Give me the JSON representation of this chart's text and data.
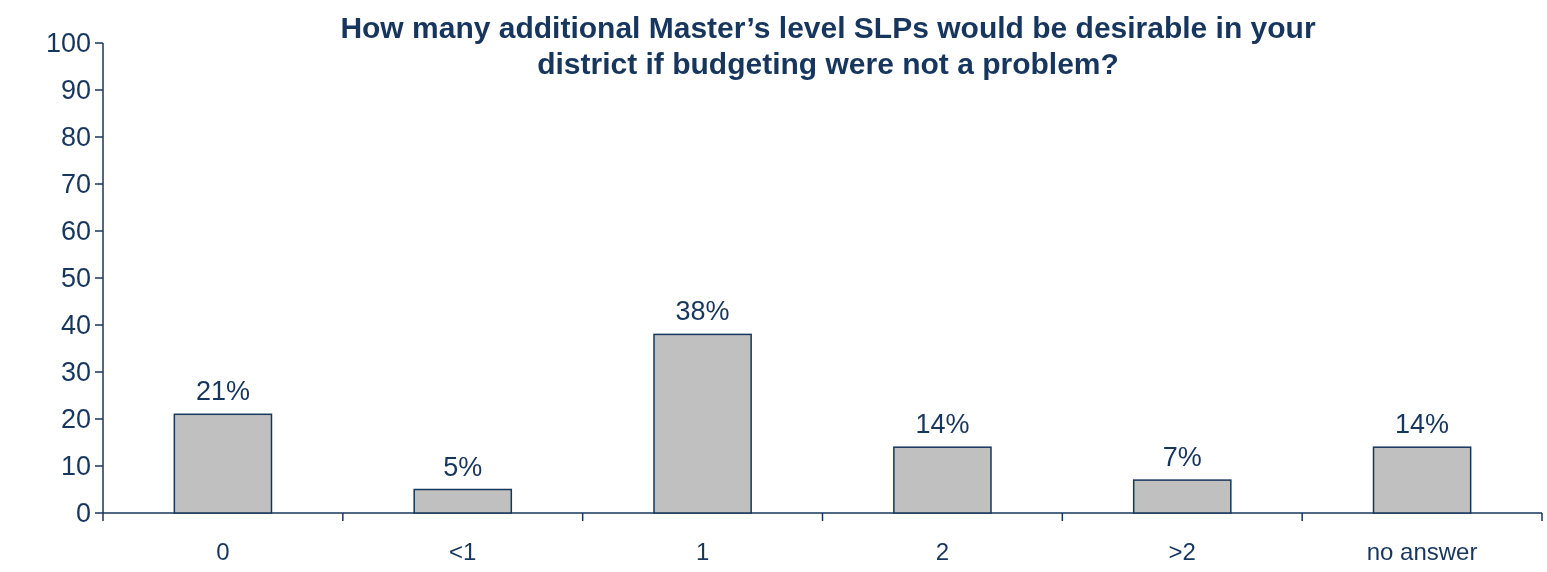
{
  "chart_data": {
    "type": "bar",
    "title": "How many additional Master’s level SLPs would be desirable in your district if budgeting were not a problem?",
    "categories": [
      "0",
      "<1",
      "1",
      "2",
      ">2",
      "no answer"
    ],
    "values": [
      21,
      5,
      38,
      14,
      7,
      14
    ],
    "value_labels": [
      "21%",
      "5%",
      "38%",
      "14%",
      "7%",
      "14%"
    ],
    "color": "#c0c0c0",
    "ylim": [
      0,
      100
    ],
    "yticks": [
      0,
      10,
      20,
      30,
      40,
      50,
      60,
      70,
      80,
      90,
      100
    ],
    "grid": false
  }
}
